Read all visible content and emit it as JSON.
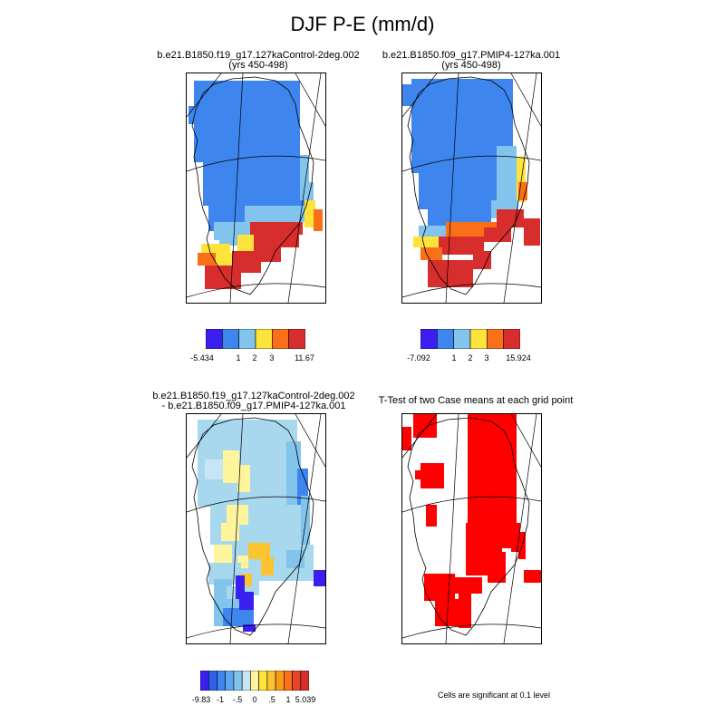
{
  "title": "DJF P-E (mm/d)",
  "colors": {
    "c_navy": "#3a1ff0",
    "c_blue": "#3f85ee",
    "c_light": "#82c4ec",
    "c_yellow": "#fde33a",
    "c_orange": "#fa7019",
    "c_red": "#d82d2d",
    "c_sig": "#ff0000",
    "c_diff_pale": "#a8d8ee",
    "c_diff_pale2": "#c7e6f5",
    "c_diff_lemon": "#fdf49c",
    "c_diff_gold": "#fbc430"
  },
  "chart_data": [
    {
      "type": "heatmap",
      "title": "b.e21.B1850.f19_g17.127kaControl-2deg.002",
      "subtitle": "(yrs 450-498)",
      "colorbar": {
        "labels": [
          "-5.434",
          "1",
          "2",
          "3",
          "11.67"
        ],
        "colors": [
          "#3a1ff0",
          "#3f85ee",
          "#82c4ec",
          "#fde33a",
          "#fa7019",
          "#d82d2d"
        ]
      }
    },
    {
      "type": "heatmap",
      "title": "b.e21.B1850.f09_g17.PMIP4-127ka.001",
      "subtitle": "(yrs 450-498)",
      "colorbar": {
        "labels": [
          "-7.092",
          "1",
          "2",
          "3",
          "15.924"
        ],
        "colors": [
          "#3a1ff0",
          "#3f85ee",
          "#82c4ec",
          "#fde33a",
          "#fa7019",
          "#d82d2d"
        ]
      }
    },
    {
      "type": "heatmap",
      "title": "b.e21.B1850.f19_g17.127kaControl-2deg.002",
      "subtitle": "- b.e21.B1850.f09_g17.PMIP4-127ka.001",
      "colorbar": {
        "labels": [
          "-9.83",
          "-1",
          "-.5",
          "0",
          ".5",
          "1",
          "5.039"
        ],
        "colors": [
          "#3a1ff0",
          "#2f5fec",
          "#3f85ee",
          "#5ea6ef",
          "#82c4ec",
          "#c7e6f5",
          "#fdf49c",
          "#fde33a",
          "#fbc430",
          "#fa9a19",
          "#fa7019",
          "#e84526",
          "#d82d2d"
        ]
      }
    },
    {
      "type": "heatmap",
      "title": "T-Test of two Case means at each grid point",
      "note": "Cells are significant at 0.1 level"
    }
  ]
}
